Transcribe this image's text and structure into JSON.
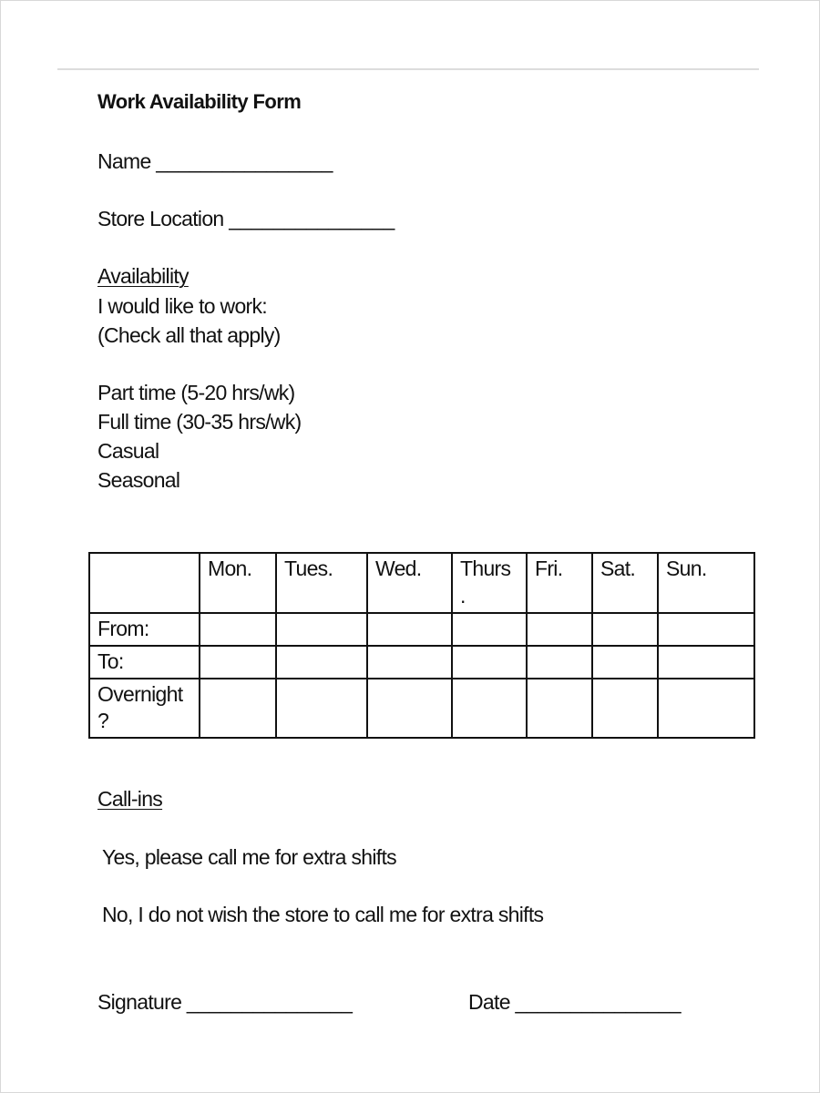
{
  "title": "Work Availability Form",
  "fields": {
    "name": "Name ________________",
    "store_location": "Store Location _______________"
  },
  "availability": {
    "heading": "Availability",
    "line1": "I would like to work:",
    "line2": "(Check all that apply)",
    "options": [
      "Part time (5-20 hrs/wk)",
      "Full time (30-35 hrs/wk)",
      "Casual",
      "Seasonal"
    ]
  },
  "schedule_table": {
    "columns": [
      "",
      "Mon.",
      "Tues.",
      "Wed.",
      "Thurs\n.",
      "Fri.",
      "Sat.",
      "Sun."
    ],
    "rows": [
      "From:",
      "To:",
      "Overnight\n?"
    ]
  },
  "callins": {
    "heading": "Call-ins",
    "yes": "Yes, please call me for extra shifts",
    "no": "No, I do not wish the store to call me for extra shifts"
  },
  "footer": {
    "signature": "Signature _______________",
    "date": "Date _______________"
  }
}
